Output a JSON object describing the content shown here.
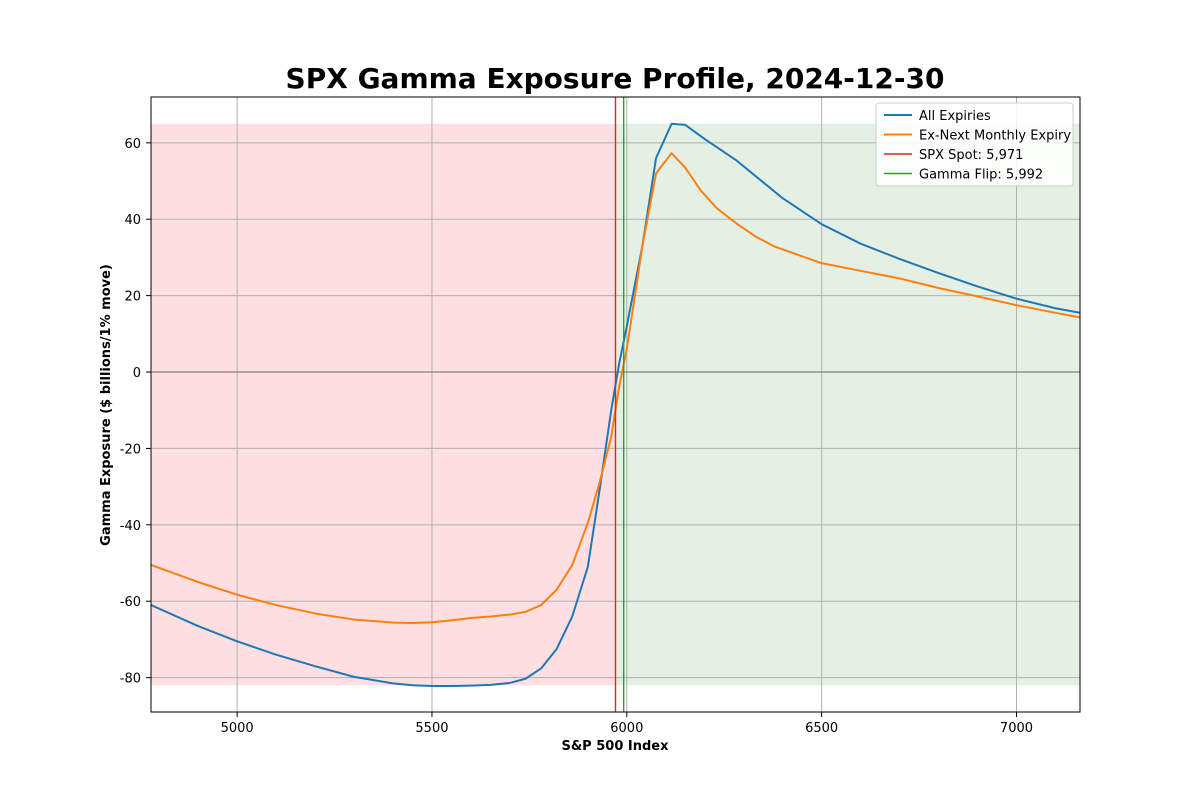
{
  "chart_data": {
    "type": "line",
    "title": "SPX Gamma Exposure Profile, 2024-12-30",
    "xlabel": "S&P 500 Index",
    "ylabel": "Gamma Exposure ($ billions/1% move)",
    "xlim": [
      4779,
      7163
    ],
    "ylim": [
      -89,
      72
    ],
    "xticks": [
      5000,
      5500,
      6000,
      6500,
      7000
    ],
    "yticks": [
      -80,
      -60,
      -40,
      -20,
      0,
      20,
      40,
      60
    ],
    "grid": true,
    "legend_position": "top-right",
    "spot": {
      "label": "SPX Spot: 5,971",
      "value": 5971,
      "color": "#d62728"
    },
    "flip": {
      "label": "Gamma Flip: 5,992",
      "value": 5992,
      "color": "#2ca02c"
    },
    "regions": [
      {
        "name": "negative-gamma",
        "from": 4779,
        "to": 5971,
        "ymin": -82,
        "ymax": 65,
        "color": "#ffdfe1"
      },
      {
        "name": "positive-gamma",
        "from": 5971,
        "to": 7163,
        "ymin": -82,
        "ymax": 65,
        "color": "#e5f0e4"
      }
    ],
    "series": [
      {
        "name": "All Expiries",
        "color": "#1f77b4",
        "x": [
          4779,
          4900,
          5000,
          5100,
          5200,
          5300,
          5400,
          5450,
          5500,
          5550,
          5600,
          5650,
          5700,
          5740,
          5780,
          5820,
          5860,
          5900,
          5930,
          5960,
          5980,
          6000,
          6040,
          6075,
          6115,
          6150,
          6200,
          6280,
          6400,
          6500,
          6600,
          6700,
          6800,
          6900,
          7000,
          7100,
          7163
        ],
        "values": [
          -61,
          -66.5,
          -70.5,
          -74,
          -77,
          -79.8,
          -81.5,
          -82,
          -82.2,
          -82.2,
          -82.1,
          -81.9,
          -81.4,
          -80.3,
          -77.6,
          -72.5,
          -64,
          -51,
          -31,
          -10,
          2,
          12,
          33,
          56,
          65,
          64.7,
          61,
          55.5,
          45.5,
          38.7,
          33.6,
          29.6,
          25.9,
          22.4,
          19.2,
          16.7,
          15.5
        ]
      },
      {
        "name": "Ex-Next Monthly Expiry",
        "color": "#ff7f0e",
        "x": [
          4779,
          4900,
          5000,
          5100,
          5200,
          5300,
          5400,
          5450,
          5500,
          5550,
          5600,
          5650,
          5700,
          5740,
          5780,
          5820,
          5860,
          5900,
          5930,
          5960,
          5980,
          6000,
          6040,
          6075,
          6115,
          6150,
          6190,
          6230,
          6280,
          6330,
          6380,
          6430,
          6500,
          6600,
          6700,
          6800,
          6900,
          7000,
          7100,
          7163
        ],
        "values": [
          -50.5,
          -55,
          -58.3,
          -61,
          -63.2,
          -64.8,
          -65.6,
          -65.7,
          -65.5,
          -65,
          -64.4,
          -64,
          -63.5,
          -62.8,
          -61,
          -57,
          -50.5,
          -39.5,
          -29,
          -17,
          -4,
          6,
          33,
          52,
          57.3,
          53.5,
          47.5,
          43,
          39,
          35.5,
          32.8,
          31,
          28.5,
          26.5,
          24.5,
          22,
          19.8,
          17.5,
          15.5,
          14.3
        ]
      }
    ]
  }
}
